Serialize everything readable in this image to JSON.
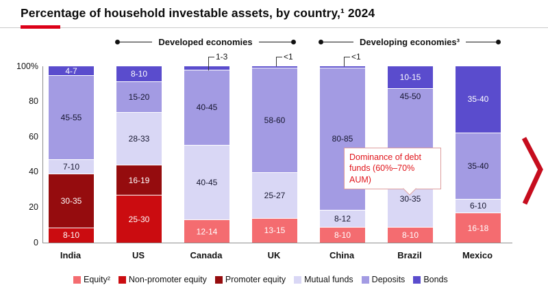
{
  "header": {
    "title": "Percentage of household investable assets, by country,¹ 2024",
    "accent_color": "#dc0018"
  },
  "group_brackets": [
    {
      "label": "Developed economies",
      "countries": [
        "US",
        "Canada",
        "UK"
      ]
    },
    {
      "label": "Developing economies³",
      "countries": [
        "China",
        "Brazil",
        "Mexico"
      ]
    }
  ],
  "callout": {
    "text": "Dominance of debt funds (60%–70% AUM)",
    "points_to": "Brazil mutual funds"
  },
  "palette": {
    "equity": {
      "fill": "#f46c70",
      "text": "#ffffff"
    },
    "non_promoter_equity": {
      "fill": "#cb0c10",
      "text": "#ffffff"
    },
    "promoter_equity": {
      "fill": "#950c0e",
      "text": "#ffffff"
    },
    "mutual_funds": {
      "fill": "#d9d7f5",
      "text": "#15152e"
    },
    "deposits": {
      "fill": "#a39be3",
      "text": "#15152e"
    },
    "bonds": {
      "fill": "#5a4ccd",
      "text": "#ffffff"
    }
  },
  "chevron_color": "#c60d1e",
  "legend": [
    {
      "key": "equity",
      "label": "Equity²"
    },
    {
      "key": "non_promoter_equity",
      "label": "Non-promoter equity"
    },
    {
      "key": "promoter_equity",
      "label": "Promoter equity"
    },
    {
      "key": "mutual_funds",
      "label": "Mutual funds"
    },
    {
      "key": "deposits",
      "label": "Deposits"
    },
    {
      "key": "bonds",
      "label": "Bonds"
    }
  ],
  "chart_data": {
    "type": "stacked-bar",
    "title": "Percentage of household investable assets, by country, 2024",
    "y_axis": {
      "ticks": [
        "100%",
        "80",
        "60",
        "40",
        "20",
        "0"
      ],
      "range": [
        0,
        100
      ],
      "gridlines": false
    },
    "legend_position": "bottom",
    "bars": [
      {
        "country": "India",
        "top_note": null,
        "segments": [
          {
            "key": "bonds",
            "label": "4-7",
            "h": 5.2
          },
          {
            "key": "deposits",
            "label": "45-55",
            "h": 47.4
          },
          {
            "key": "mutual_funds",
            "label": "7-10",
            "h": 8.1
          },
          {
            "key": "promoter_equity",
            "label": "30-35",
            "h": 30.8
          },
          {
            "key": "non_promoter_equity",
            "label": "8-10",
            "h": 8.5
          }
        ]
      },
      {
        "country": "US",
        "top_note": null,
        "segments": [
          {
            "key": "bonds",
            "label": "8-10",
            "h": 8.7
          },
          {
            "key": "deposits",
            "label": "15-20",
            "h": 17.2
          },
          {
            "key": "mutual_funds",
            "label": "28-33",
            "h": 29.9
          },
          {
            "key": "promoter_equity",
            "label": "16-19",
            "h": 17.2
          },
          {
            "key": "non_promoter_equity",
            "label": "25-30",
            "h": 27.0
          }
        ]
      },
      {
        "country": "Canada",
        "top_note": "1-3",
        "segments": [
          {
            "key": "bonds",
            "label": "",
            "h": 2.0
          },
          {
            "key": "deposits",
            "label": "40-45",
            "h": 42.5
          },
          {
            "key": "mutual_funds",
            "label": "40-45",
            "h": 42.5
          },
          {
            "key": "equity",
            "label": "12-14",
            "h": 13.0
          }
        ]
      },
      {
        "country": "UK",
        "top_note": "<1",
        "segments": [
          {
            "key": "bonds",
            "label": "",
            "h": 0.8
          },
          {
            "key": "deposits",
            "label": "58-60",
            "h": 59.2
          },
          {
            "key": "mutual_funds",
            "label": "25-27",
            "h": 26.0
          },
          {
            "key": "equity",
            "label": "13-15",
            "h": 14.0
          }
        ]
      },
      {
        "country": "China",
        "top_note": "<1",
        "segments": [
          {
            "key": "bonds",
            "label": "",
            "h": 0.7
          },
          {
            "key": "deposits",
            "label": "80-85",
            "h": 80.7
          },
          {
            "key": "mutual_funds",
            "label": "8-12",
            "h": 9.8
          },
          {
            "key": "equity",
            "label": "8-10",
            "h": 8.8
          }
        ]
      },
      {
        "country": "Brazil",
        "top_note": null,
        "segments": [
          {
            "key": "bonds",
            "label": "10-15",
            "h": 12.3
          },
          {
            "key": "deposits",
            "label": "45-50",
            "h": 46.8,
            "label_align": "top"
          },
          {
            "key": "mutual_funds",
            "label": "30-35",
            "h": 32.0
          },
          {
            "key": "equity",
            "label": "8-10",
            "h": 8.9
          }
        ]
      },
      {
        "country": "Mexico",
        "top_note": null,
        "segments": [
          {
            "key": "bonds",
            "label": "35-40",
            "h": 37.5
          },
          {
            "key": "deposits",
            "label": "35-40",
            "h": 37.5
          },
          {
            "key": "mutual_funds",
            "label": "6-10",
            "h": 8.0
          },
          {
            "key": "equity",
            "label": "16-18",
            "h": 17.0
          }
        ]
      }
    ]
  }
}
